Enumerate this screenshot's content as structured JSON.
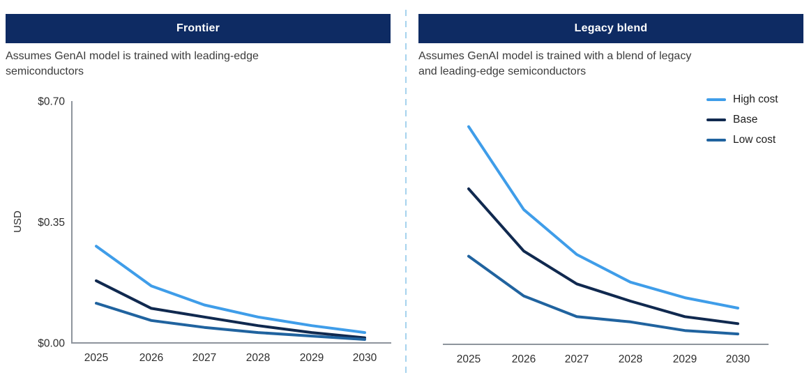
{
  "panels": {
    "left": {
      "title": "Frontier",
      "subtitle_lines": [
        "Assumes GenAI model is trained with leading-edge",
        "semiconductors"
      ]
    },
    "right": {
      "title": "Legacy blend",
      "subtitle_lines": [
        "Assumes GenAI model is trained with a blend of legacy",
        "and leading-edge semiconductors"
      ]
    }
  },
  "legend": {
    "position": "top-right-of-right-panel",
    "items": [
      {
        "label": "High cost",
        "color": "#3f9de9"
      },
      {
        "label": "Base",
        "color": "#10294f"
      },
      {
        "label": "Low cost",
        "color": "#20639f"
      }
    ]
  },
  "colors": {
    "header_bar": "#0e2b63",
    "axis": "#8e949c",
    "divider_dashed": "#a6d3ee",
    "high_cost": "#3f9de9",
    "base": "#10294f",
    "low_cost": "#20639f"
  },
  "chart_data": [
    {
      "type": "line",
      "title": "Frontier",
      "x": [
        "2025",
        "2026",
        "2027",
        "2028",
        "2029",
        "2030"
      ],
      "series": [
        {
          "name": "High cost",
          "color": "#3f9de9",
          "values": [
            0.28,
            0.165,
            0.11,
            0.075,
            0.05,
            0.03
          ]
        },
        {
          "name": "Base",
          "color": "#10294f",
          "values": [
            0.18,
            0.1,
            0.075,
            0.05,
            0.03,
            0.015
          ]
        },
        {
          "name": "Low cost",
          "color": "#20639f",
          "values": [
            0.115,
            0.065,
            0.045,
            0.03,
            0.02,
            0.01
          ]
        }
      ],
      "xlabel": "",
      "ylabel": "USD",
      "ylim": [
        0,
        0.7
      ],
      "yticks": [
        {
          "label": "$0.00",
          "value": 0.0
        },
        {
          "label": "$0.35",
          "value": 0.35
        },
        {
          "label": "$0.70",
          "value": 0.7
        }
      ],
      "grid": false,
      "legend": false
    },
    {
      "type": "line",
      "title": "Legacy blend",
      "x": [
        "2025",
        "2026",
        "2027",
        "2028",
        "2029",
        "2030"
      ],
      "series": [
        {
          "name": "High cost",
          "color": "#3f9de9",
          "values": [
            0.63,
            0.39,
            0.26,
            0.18,
            0.135,
            0.105
          ]
        },
        {
          "name": "Base",
          "color": "#10294f",
          "values": [
            0.45,
            0.27,
            0.175,
            0.125,
            0.08,
            0.06
          ]
        },
        {
          "name": "Low cost",
          "color": "#20639f",
          "values": [
            0.255,
            0.14,
            0.08,
            0.065,
            0.04,
            0.03
          ]
        }
      ],
      "xlabel": "",
      "ylabel": "",
      "ylim": [
        0,
        0.7
      ],
      "yticks": [],
      "grid": false,
      "legend": "top-right"
    }
  ]
}
